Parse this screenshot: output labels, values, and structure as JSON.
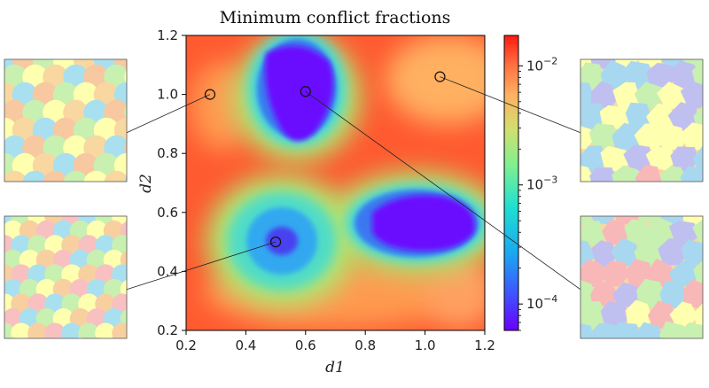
{
  "chart_data": {
    "type": "heatmap",
    "title": "Minimum conflict fractions",
    "xlabel": "d1",
    "ylabel": "d2",
    "xlim": [
      0.2,
      1.2
    ],
    "ylim": [
      0.2,
      1.2
    ],
    "x_ticks": [
      0.2,
      0.4,
      0.6,
      0.8,
      1.0,
      1.2
    ],
    "y_ticks": [
      0.2,
      0.4,
      0.6,
      0.8,
      1.0,
      1.2
    ],
    "x_tick_labels": [
      "0.2",
      "0.4",
      "0.6",
      "0.8",
      "1.0",
      "1.2"
    ],
    "y_tick_labels": [
      "0.2",
      "0.4",
      "0.6",
      "0.8",
      "1.0",
      "1.2"
    ],
    "colorbar": {
      "scale": "log",
      "colormap": "rainbow",
      "range": [
        6e-05,
        0.018
      ],
      "tick_values": [
        0.0001,
        0.001,
        0.01
      ],
      "tick_labels": [
        "10−4",
        "10−3",
        "10−2"
      ]
    },
    "minima_regions": [
      {
        "center_d1": 0.5,
        "center_d2": 0.5,
        "value": 0.0001
      },
      {
        "center_d1": 0.62,
        "center_d2": 1.02,
        "value": 7e-05
      },
      {
        "center_d1": 1.0,
        "center_d2": 0.55,
        "value": 7e-05
      }
    ],
    "marked_points": [
      {
        "d1": 0.28,
        "d2": 1.0
      },
      {
        "d1": 0.6,
        "d2": 1.01
      },
      {
        "d1": 1.05,
        "d2": 1.06
      },
      {
        "d1": 0.5,
        "d2": 0.5
      }
    ],
    "insets": [
      {
        "id": "top-left",
        "point_index": 0,
        "colors": [
          "#f8d8a0",
          "#a8e0f0",
          "#f8c8a0",
          "#c8f0b0",
          "#ffffb0",
          "#b8c8f0"
        ]
      },
      {
        "id": "bottom-left",
        "point_index": 3,
        "colors": [
          "#f8c0c0",
          "#a8e0f0",
          "#c8f0b0",
          "#ffffb0",
          "#f8d0a0",
          "#c0c8f0"
        ]
      },
      {
        "id": "top-right",
        "point_index": 2,
        "colors": [
          "#ffffb0",
          "#f8b8b8",
          "#a8d8f0",
          "#c8f0b0",
          "#c0c0f0",
          "#f8d8a0"
        ]
      },
      {
        "id": "bottom-right",
        "point_index": 1,
        "colors": [
          "#ffffb0",
          "#f8b8b8",
          "#a8d8f0",
          "#c8f0b0",
          "#c0c0f0",
          "#f8d8a0"
        ]
      }
    ]
  }
}
